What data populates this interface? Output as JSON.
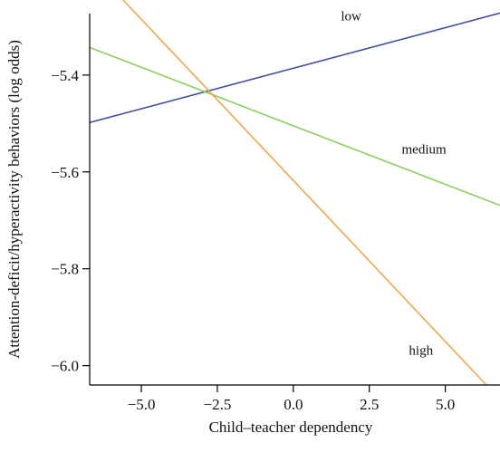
{
  "chart_data": {
    "type": "line",
    "xlabel": "Child–teacher dependency",
    "ylabel": "Attention-deficit/hyperactivity behaviors (log odds)",
    "xlim": [
      -6.7,
      6.8
    ],
    "ylim": [
      -6.04,
      -5.245
    ],
    "x_ticks": [
      -5.0,
      -2.5,
      0.0,
      2.5,
      5.0
    ],
    "x_tick_labels": [
      "−5.0",
      "−2.5",
      "0.0",
      "2.5",
      "5.0"
    ],
    "y_ticks": [
      -5.4,
      -5.6,
      -5.8,
      -6.0
    ],
    "y_tick_labels": [
      "−5.4",
      "−5.6",
      "−5.8",
      "−6.0"
    ],
    "grid": false,
    "series": [
      {
        "name": "low",
        "color": "#3f4ea6",
        "x": [
          -6.7,
          6.8
        ],
        "y": [
          -5.498,
          -5.272
        ]
      },
      {
        "name": "medium",
        "color": "#8bd05e",
        "x": [
          -6.7,
          6.8
        ],
        "y": [
          -5.343,
          -5.669
        ]
      },
      {
        "name": "high",
        "color": "#f5a44a",
        "x": [
          -5.6,
          6.35
        ],
        "y": [
          -5.245,
          -6.04
        ]
      }
    ]
  }
}
